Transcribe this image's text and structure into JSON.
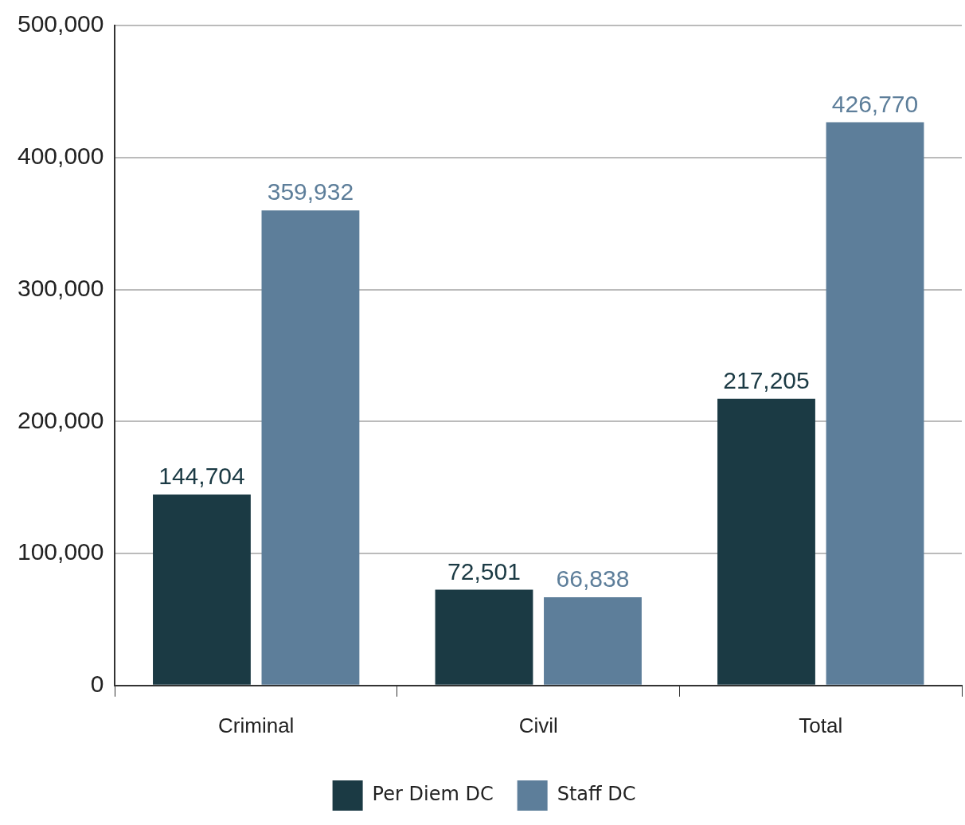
{
  "chart_data": {
    "type": "bar",
    "categories": [
      "Criminal",
      "Civil",
      "Total"
    ],
    "series": [
      {
        "name": "Per Diem DC",
        "color": "#1b3a44",
        "values": [
          144704,
          72501,
          217205
        ],
        "value_labels": [
          "144,704",
          "72,501",
          "217,205"
        ]
      },
      {
        "name": "Staff DC",
        "color": "#5d7e9a",
        "values": [
          359932,
          66838,
          426770
        ],
        "value_labels": [
          "359,932",
          "66,838",
          "426,770"
        ]
      }
    ],
    "ylim": [
      0,
      500000
    ],
    "yticks": [
      {
        "value": 0,
        "label": "0"
      },
      {
        "value": 100000,
        "label": "100,000"
      },
      {
        "value": 200000,
        "label": "200,000"
      },
      {
        "value": 300000,
        "label": "300,000"
      },
      {
        "value": 400000,
        "label": "400,000"
      },
      {
        "value": 500000,
        "label": "500,000"
      }
    ],
    "grid": "y",
    "legend": "bottom"
  }
}
